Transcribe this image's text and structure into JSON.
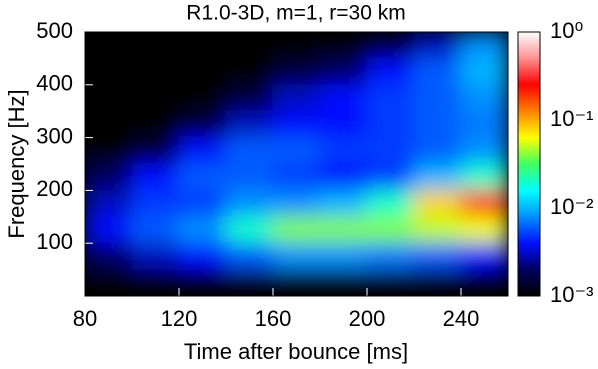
{
  "chart_data": {
    "type": "heatmap",
    "title": "R1.0-3D, m=1, r=30 km",
    "x_label": "Time after bounce [ms]",
    "y_label": "Frequency [Hz]",
    "x": [
      90,
      110,
      130,
      150,
      170,
      190,
      210,
      230,
      250
    ],
    "y": [
      475,
      425,
      375,
      325,
      275,
      225,
      175,
      125,
      75,
      25
    ],
    "z": [
      [
        0.001,
        0.001,
        0.001,
        0.001,
        0.001,
        0.001,
        0.0015,
        0.003,
        0.008
      ],
      [
        0.001,
        0.001,
        0.001,
        0.001,
        0.0015,
        0.002,
        0.004,
        0.006,
        0.01
      ],
      [
        0.001,
        0.001,
        0.001,
        0.0015,
        0.003,
        0.004,
        0.005,
        0.006,
        0.008
      ],
      [
        0.001,
        0.001,
        0.0015,
        0.003,
        0.004,
        0.004,
        0.005,
        0.006,
        0.007
      ],
      [
        0.001,
        0.0015,
        0.004,
        0.006,
        0.006,
        0.005,
        0.005,
        0.006,
        0.008
      ],
      [
        0.002,
        0.004,
        0.006,
        0.006,
        0.005,
        0.004,
        0.005,
        0.01,
        0.02
      ],
      [
        0.003,
        0.005,
        0.005,
        0.008,
        0.008,
        0.01,
        0.02,
        0.08,
        0.2
      ],
      [
        0.004,
        0.006,
        0.008,
        0.02,
        0.04,
        0.04,
        0.04,
        0.05,
        0.06
      ],
      [
        0.002,
        0.003,
        0.004,
        0.006,
        0.008,
        0.008,
        0.007,
        0.006,
        0.004
      ],
      [
        0.001,
        0.001,
        0.001,
        0.001,
        0.001,
        0.001,
        0.001,
        0.001,
        0.001
      ]
    ],
    "xlim": [
      80,
      260
    ],
    "ylim": [
      0,
      500
    ],
    "xticks": [
      80,
      120,
      160,
      200,
      240
    ],
    "yticks": [
      100,
      200,
      300,
      400,
      500
    ],
    "colorbar_scale": "log",
    "colorbar_lim": [
      0.001,
      1
    ],
    "colorbar_ticks": [
      {
        "value": 1,
        "label": "10⁰"
      },
      {
        "value": 0.1,
        "label": "10⁻¹"
      },
      {
        "value": 0.01,
        "label": "10⁻²"
      },
      {
        "value": 0.001,
        "label": "10⁻³"
      }
    ],
    "colormap": [
      "#000000",
      "#000060",
      "#0010ff",
      "#0090ff",
      "#00ffff",
      "#40ff60",
      "#ffff00",
      "#ff8000",
      "#ff0000",
      "#ff9090",
      "#ffffff"
    ]
  }
}
